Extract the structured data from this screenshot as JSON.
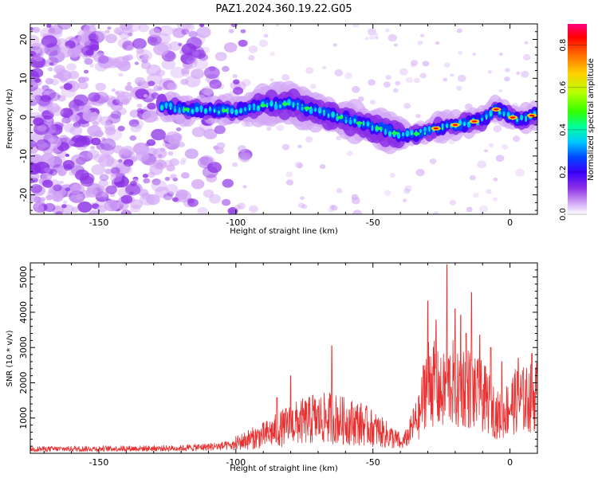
{
  "title": "PAZ1.2024.360.19.22.G05",
  "chart_data": [
    {
      "type": "heatmap",
      "xlabel": "Height of straight line (km)",
      "ylabel": "Frequency (Hz)",
      "xlim": [
        -175,
        10
      ],
      "ylim": [
        -25,
        24
      ],
      "xticks": [
        -150,
        -100,
        -50,
        0
      ],
      "yticks": [
        -20,
        -10,
        0,
        10,
        20
      ],
      "colorbar": {
        "label": "Normalized spectral amplitude",
        "range": [
          0.0,
          0.9
        ],
        "ticks": [
          "0.0",
          "0.2",
          "0.4",
          "0.6",
          "0.8"
        ],
        "colors": [
          "#ffffff",
          "#d2a6f5",
          "#8b2fe6",
          "#3b00ff",
          "#0047ff",
          "#00c8ff",
          "#00ff9a",
          "#33ff00",
          "#b8ff00",
          "#ffd000",
          "#ff6a00",
          "#ff0000",
          "#ff0080"
        ]
      },
      "ridge": {
        "x": [
          -127,
          -120,
          -110,
          -100,
          -90,
          -80,
          -70,
          -60,
          -50,
          -45,
          -40,
          -35,
          -30,
          -25,
          -20,
          -15,
          -10,
          -5,
          0,
          5,
          10
        ],
        "y": [
          3,
          2,
          2,
          1.5,
          3,
          3.5,
          1.5,
          -0.5,
          -2.5,
          -3.5,
          -4.5,
          -4.5,
          -3.5,
          -2.5,
          -2,
          -1.5,
          -0.5,
          2,
          0,
          -0.5,
          1
        ]
      }
    },
    {
      "type": "line",
      "xlabel": "Height of straight line (km)",
      "ylabel": "SNR (10 * v/v)",
      "xlim": [
        -175,
        10
      ],
      "ylim": [
        0,
        5400
      ],
      "xticks": [
        -150,
        -100,
        -50,
        0
      ],
      "yticks": [
        1000,
        2000,
        3000,
        4000,
        5000
      ],
      "color": "#e83030",
      "envelope": {
        "x": [
          -175,
          -140,
          -120,
          -110,
          -100,
          -95,
          -90,
          -85,
          -80,
          -75,
          -70,
          -65,
          -60,
          -55,
          -50,
          -45,
          -40,
          -37,
          -35,
          -33,
          -31,
          -29,
          -27,
          -25,
          -23,
          -21,
          -19,
          -17,
          -15,
          -13,
          -11,
          -9,
          -7,
          -5,
          -3,
          0,
          3,
          6,
          10
        ],
        "y": [
          150,
          170,
          180,
          230,
          280,
          400,
          500,
          650,
          800,
          900,
          950,
          1000,
          900,
          850,
          700,
          520,
          330,
          750,
          1250,
          1500,
          2800,
          3100,
          2700,
          2400,
          2800,
          2900,
          2500,
          2800,
          2700,
          2400,
          2400,
          2200,
          2000,
          1600,
          1500,
          2000,
          2200,
          2200,
          2400
        ]
      },
      "peaks": [
        {
          "x": -85,
          "y": 1580
        },
        {
          "x": -80,
          "y": 2200
        },
        {
          "x": -72,
          "y": 1650
        },
        {
          "x": -65,
          "y": 3050
        },
        {
          "x": -30,
          "y": 4320
        },
        {
          "x": -27,
          "y": 3780
        },
        {
          "x": -23,
          "y": 5350
        },
        {
          "x": -20,
          "y": 4100
        },
        {
          "x": -18,
          "y": 3920
        },
        {
          "x": -16,
          "y": 3400
        },
        {
          "x": -14,
          "y": 4560
        },
        {
          "x": -11,
          "y": 3350
        },
        {
          "x": -7,
          "y": 3000
        },
        {
          "x": -3,
          "y": 2600
        },
        {
          "x": 3,
          "y": 2700
        },
        {
          "x": 8,
          "y": 2830
        }
      ]
    }
  ]
}
